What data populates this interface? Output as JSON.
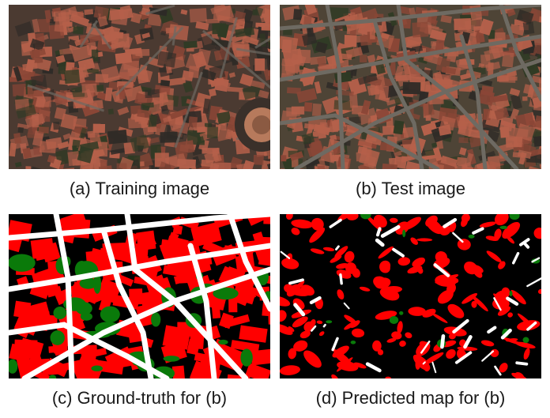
{
  "figure": {
    "panels": [
      {
        "id": "a",
        "caption": "(a) Training image",
        "kind": "aerial-photo"
      },
      {
        "id": "b",
        "caption": "(b) Test image",
        "kind": "aerial-photo"
      },
      {
        "id": "c",
        "caption": "(c) Ground-truth for (b)",
        "kind": "segmentation-map"
      },
      {
        "id": "d",
        "caption": "(d) Predicted map for (b)",
        "kind": "segmentation-map"
      }
    ],
    "class_colors": {
      "building": "#ff0000",
      "vegetation": "#0a7a0a",
      "road": "#ffffff",
      "background": "#000000"
    },
    "photo_colors": {
      "roof": "#b5604a",
      "roof_dark": "#8a4636",
      "shadow": "#2e2a26",
      "tree": "#2f3a24",
      "street": "#6e6a62"
    }
  }
}
